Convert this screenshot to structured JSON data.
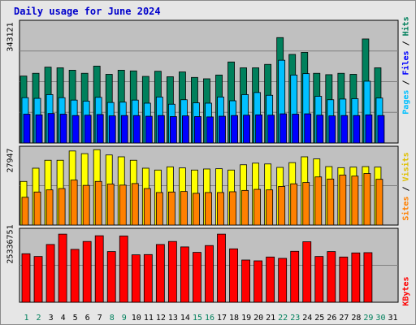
{
  "title": "Daily usage for June 2024",
  "colors": {
    "background": "#e6e6e6",
    "plot_bg": "#c0c0c0",
    "hits": "#00805c",
    "files": "#00c0ff",
    "pages": "#0000ff",
    "visits": "#ffff00",
    "sites": "#ff8000",
    "kbytes": "#ff0000",
    "weekday_label": "#000000",
    "weekend_label": "#00805c",
    "title": "#0000cc"
  },
  "legends": {
    "hits_panel": [
      "Pages",
      "Files",
      "Hits"
    ],
    "visits_panel": [
      "Sites",
      "Visits"
    ],
    "kbytes_panel": [
      "KBytes"
    ],
    "separator": " / "
  },
  "chart_data": [
    {
      "type": "bar",
      "panel": "hits-files-pages",
      "y_max_label": "343121",
      "ylim": [
        0,
        343121
      ],
      "categories": [
        "1",
        "2",
        "3",
        "4",
        "5",
        "6",
        "7",
        "8",
        "9",
        "10",
        "11",
        "12",
        "13",
        "14",
        "15",
        "16",
        "17",
        "18",
        "19",
        "20",
        "21",
        "22",
        "23",
        "24",
        "25",
        "26",
        "27",
        "28",
        "29",
        "30",
        "31"
      ],
      "weekend_days": [
        1,
        2,
        8,
        9,
        15,
        16,
        22,
        23,
        29,
        30
      ],
      "series": [
        {
          "name": "Hits",
          "values": [
            195000,
            203000,
            221000,
            219000,
            212000,
            203000,
            224000,
            200000,
            212000,
            210000,
            194000,
            209000,
            193000,
            207000,
            191000,
            187000,
            198000,
            236000,
            219000,
            219000,
            229000,
            307000,
            258000,
            264000,
            203000,
            199000,
            203000,
            200000,
            303000,
            219000,
            0
          ]
        },
        {
          "name": "Files",
          "values": [
            132000,
            130000,
            141000,
            132000,
            125000,
            122000,
            133000,
            118000,
            119000,
            125000,
            116000,
            134000,
            113000,
            126000,
            117000,
            116000,
            134000,
            123000,
            141000,
            147000,
            139000,
            241000,
            198000,
            202000,
            136000,
            126000,
            128000,
            129000,
            180000,
            131000,
            0
          ]
        },
        {
          "name": "Pages",
          "values": [
            84000,
            82000,
            86000,
            84000,
            80000,
            81000,
            83000,
            79000,
            80000,
            80000,
            78000,
            80000,
            77000,
            79000,
            77000,
            76000,
            78000,
            80000,
            81000,
            82000,
            81000,
            85000,
            84000,
            85000,
            81000,
            79000,
            80000,
            80000,
            82000,
            80000,
            0
          ]
        }
      ]
    },
    {
      "type": "bar",
      "panel": "visits-sites",
      "y_max_label": "27947",
      "ylim": [
        0,
        27947
      ],
      "series": [
        {
          "name": "Visits",
          "values": [
            16500,
            21500,
            24500,
            24500,
            28000,
            27000,
            28500,
            26500,
            25800,
            24500,
            21500,
            20800,
            22000,
            21600,
            20800,
            21200,
            21300,
            20800,
            22800,
            23400,
            23100,
            21800,
            23600,
            25800,
            25000,
            22100,
            21700,
            21900,
            22100,
            21900,
            0
          ]
        },
        {
          "name": "Sites",
          "values": [
            10500,
            12500,
            13300,
            13800,
            17000,
            15000,
            16500,
            15500,
            15100,
            15700,
            13800,
            12300,
            12500,
            12700,
            12000,
            12300,
            12300,
            12600,
            13100,
            13500,
            13300,
            14600,
            15600,
            16100,
            18200,
            17400,
            18900,
            18500,
            19500,
            17300,
            0
          ]
        }
      ]
    },
    {
      "type": "bar",
      "panel": "kbytes",
      "y_max_label": "25336751",
      "ylim": [
        0,
        25336751
      ],
      "series": [
        {
          "name": "KBytes",
          "values": [
            17800000,
            16800000,
            21200000,
            25000000,
            19400000,
            22300000,
            24400000,
            18600000,
            24300000,
            17400000,
            17500000,
            21200000,
            22300000,
            20300000,
            18300000,
            20800000,
            25000000,
            19600000,
            15500000,
            15200000,
            16600000,
            16100000,
            18700000,
            22200000,
            16800000,
            18600000,
            16600000,
            18100000,
            18200000,
            0,
            0
          ]
        }
      ]
    }
  ]
}
